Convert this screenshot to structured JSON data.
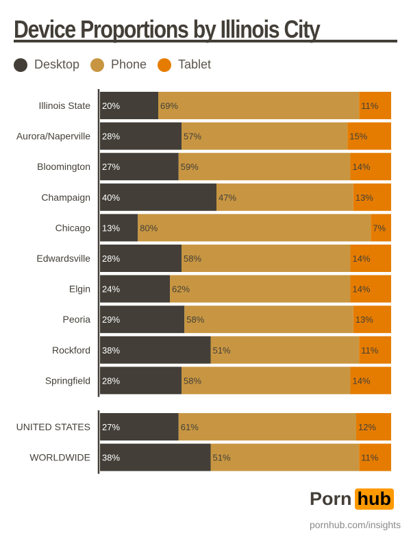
{
  "chart_data": {
    "type": "bar",
    "stacked": true,
    "orientation": "horizontal",
    "title": "Device Proportions by Illinois City",
    "legend": {
      "placement": "top-left"
    },
    "series": [
      {
        "name": "Desktop",
        "color": "#433f38"
      },
      {
        "name": "Phone",
        "color": "#c89642"
      },
      {
        "name": "Tablet",
        "color": "#e57c00"
      }
    ],
    "groups": [
      {
        "rows": [
          {
            "category": "Illinois State",
            "values": [
              20,
              69,
              11
            ]
          },
          {
            "category": "Aurora/Naperville",
            "values": [
              28,
              57,
              15
            ]
          },
          {
            "category": "Bloomington",
            "values": [
              27,
              59,
              14
            ]
          },
          {
            "category": "Champaign",
            "values": [
              40,
              47,
              13
            ]
          },
          {
            "category": "Chicago",
            "values": [
              13,
              80,
              7
            ]
          },
          {
            "category": "Edwardsville",
            "values": [
              28,
              58,
              14
            ]
          },
          {
            "category": "Elgin",
            "values": [
              24,
              62,
              14
            ]
          },
          {
            "category": "Peoria",
            "values": [
              29,
              58,
              13
            ]
          },
          {
            "category": "Rockford",
            "values": [
              38,
              51,
              11
            ]
          },
          {
            "category": "Springfield",
            "values": [
              28,
              58,
              14
            ]
          }
        ]
      },
      {
        "rows": [
          {
            "category": "UNITED STATES",
            "values": [
              27,
              61,
              12
            ]
          },
          {
            "category": "WORLDWIDE",
            "values": [
              38,
              51,
              11
            ]
          }
        ]
      }
    ]
  },
  "brand": {
    "logo_left": "Porn",
    "logo_right": "hub",
    "url": "pornhub.com/insights"
  }
}
